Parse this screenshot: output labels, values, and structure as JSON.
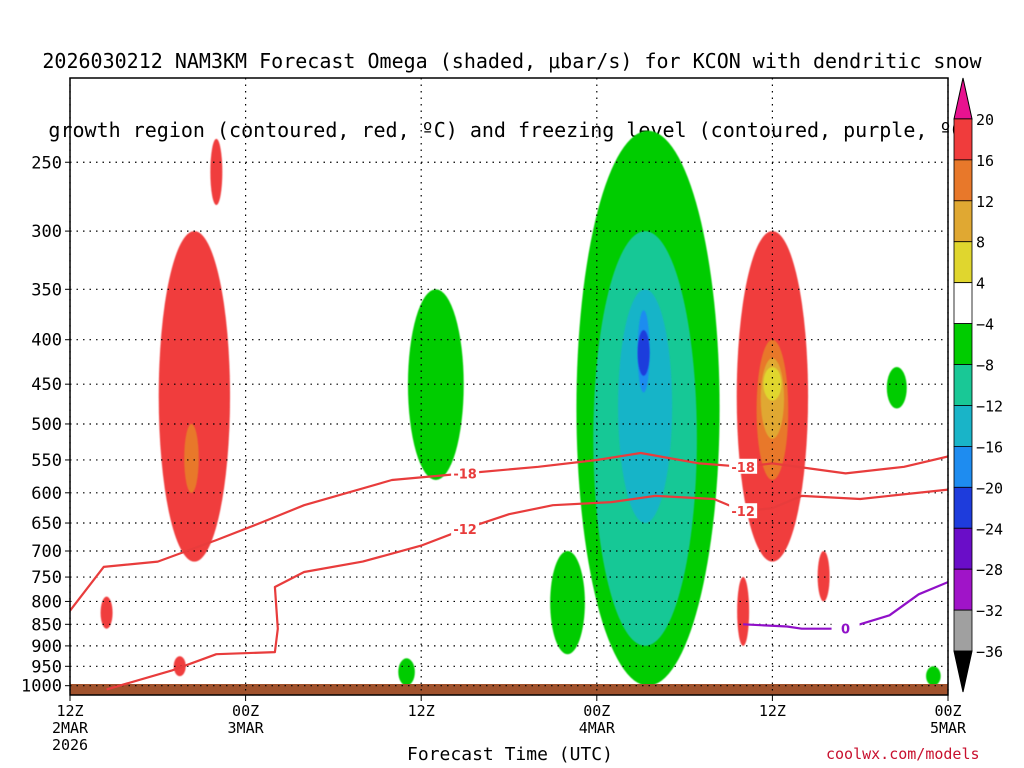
{
  "title_lines": [
    "2026030212 NAM3KM Forecast Omega (shaded, μbar/s) for KCON with dendritic snow",
    "growth region (contoured, red, ºC) and freezing level (contoured, purple, ºC)"
  ],
  "credit": "coolwx.com/models",
  "chart_data": {
    "type": "heatmap",
    "title": "2026030212 NAM3KM Forecast Omega (shaded, μbar/s) for KCON with dendritic snow growth region (contoured, red, ºC) and freezing level (contoured, purple, ºC)",
    "xlabel": "Forecast Time (UTC)",
    "ylabel": "",
    "x_range_hours": [
      0,
      60
    ],
    "y_range_hpa": [
      1025,
      200
    ],
    "y_scale": "log",
    "y_ticks": [
      250,
      300,
      350,
      400,
      450,
      500,
      550,
      600,
      650,
      700,
      750,
      800,
      850,
      900,
      950,
      1000
    ],
    "x_ticks": [
      {
        "hour": 0,
        "lines": [
          "12Z",
          "2MAR",
          "2026"
        ]
      },
      {
        "hour": 12,
        "lines": [
          "00Z",
          "3MAR"
        ]
      },
      {
        "hour": 24,
        "lines": [
          "12Z"
        ]
      },
      {
        "hour": 36,
        "lines": [
          "00Z",
          "4MAR"
        ]
      },
      {
        "hour": 48,
        "lines": [
          "12Z"
        ]
      },
      {
        "hour": 60,
        "lines": [
          "00Z",
          "5MAR"
        ]
      }
    ],
    "grid": true,
    "colorbar": {
      "labels": [
        "20",
        "16",
        "12",
        "8",
        "4",
        "−4",
        "−8",
        "−12",
        "−16",
        "−20",
        "−24",
        "−28",
        "−32",
        "−36"
      ],
      "colors": [
        "#e8128f",
        "#f03c3c",
        "#e8782a",
        "#e0a832",
        "#e0d62e",
        "#ffffff",
        "#00cc00",
        "#19c896",
        "#19b4c8",
        "#1e8cf0",
        "#1e3cdc",
        "#6a0dc8",
        "#a014c8",
        "#a0a0a0",
        "#000000"
      ]
    },
    "omega_regions": [
      {
        "band": 4,
        "hour": 8.5,
        "p_top": 300,
        "p_bot": 720
      },
      {
        "band": 4,
        "hour": 10,
        "p_top": 235,
        "p_bot": 280
      },
      {
        "band": 3,
        "hour": 8.3,
        "p_top": 500,
        "p_bot": 600
      },
      {
        "band": 4,
        "hour": 2.5,
        "p_top": 790,
        "p_bot": 860
      },
      {
        "band": 4,
        "hour": 7.5,
        "p_top": 925,
        "p_bot": 975
      },
      {
        "band": -1,
        "hour": 25,
        "p_top": 350,
        "p_bot": 580
      },
      {
        "band": -1,
        "hour": 23,
        "p_top": 930,
        "p_bot": 1000
      },
      {
        "band": -1,
        "hour": 34,
        "p_top": 700,
        "p_bot": 920
      },
      {
        "band": -1,
        "hour": 39.5,
        "p_top": 230,
        "p_bot": 1000
      },
      {
        "band": -2,
        "hour": 39.3,
        "p_top": 300,
        "p_bot": 900
      },
      {
        "band": -3,
        "hour": 39.3,
        "p_top": 350,
        "p_bot": 650
      },
      {
        "band": -4,
        "hour": 39.2,
        "p_top": 370,
        "p_bot": 460
      },
      {
        "band": -5,
        "hour": 39.2,
        "p_top": 390,
        "p_bot": 440
      },
      {
        "band": 4,
        "hour": 48,
        "p_top": 300,
        "p_bot": 720
      },
      {
        "band": 3,
        "hour": 48,
        "p_top": 400,
        "p_bot": 580
      },
      {
        "band": 2,
        "hour": 48,
        "p_top": 420,
        "p_bot": 520
      },
      {
        "band": 1,
        "hour": 48,
        "p_top": 430,
        "p_bot": 470
      },
      {
        "band": 4,
        "hour": 46,
        "p_top": 750,
        "p_bot": 900
      },
      {
        "band": 4,
        "hour": 51.5,
        "p_top": 700,
        "p_bot": 800
      },
      {
        "band": -1,
        "hour": 56.5,
        "p_top": 430,
        "p_bot": 480
      },
      {
        "band": -1,
        "hour": 59,
        "p_top": 950,
        "p_bot": 1000
      }
    ],
    "contours": [
      {
        "label": "-18",
        "color": "#e83c3c",
        "points": [
          [
            0,
            820
          ],
          [
            2.3,
            730
          ],
          [
            6,
            720
          ],
          [
            10,
            680
          ],
          [
            13,
            650
          ],
          [
            16,
            620
          ],
          [
            22,
            580
          ],
          [
            27,
            570
          ],
          [
            32,
            560
          ],
          [
            36,
            550
          ],
          [
            39,
            540
          ],
          [
            43,
            555
          ],
          [
            46,
            560
          ],
          [
            48,
            555
          ],
          [
            53,
            570
          ],
          [
            57,
            560
          ],
          [
            60,
            545
          ]
        ]
      },
      {
        "label": "-12",
        "color": "#e83c3c",
        "points": [
          [
            2.5,
            1010
          ],
          [
            7,
            960
          ],
          [
            10,
            920
          ],
          [
            14,
            915
          ],
          [
            14.2,
            860
          ],
          [
            14,
            770
          ],
          [
            16,
            740
          ],
          [
            20,
            720
          ],
          [
            24,
            690
          ],
          [
            27,
            660
          ],
          [
            30,
            635
          ],
          [
            33,
            620
          ],
          [
            37,
            615
          ],
          [
            40,
            605
          ],
          [
            44,
            610
          ],
          [
            46,
            630
          ],
          [
            48,
            625
          ],
          [
            50,
            605
          ],
          [
            54,
            610
          ],
          [
            60,
            595
          ]
        ]
      },
      {
        "label": "0",
        "color": "#9010c8",
        "points": [
          [
            46,
            850
          ],
          [
            49,
            855
          ],
          [
            50,
            860
          ],
          [
            53,
            860
          ],
          [
            56,
            830
          ],
          [
            58,
            785
          ],
          [
            60,
            760
          ]
        ]
      }
    ]
  }
}
